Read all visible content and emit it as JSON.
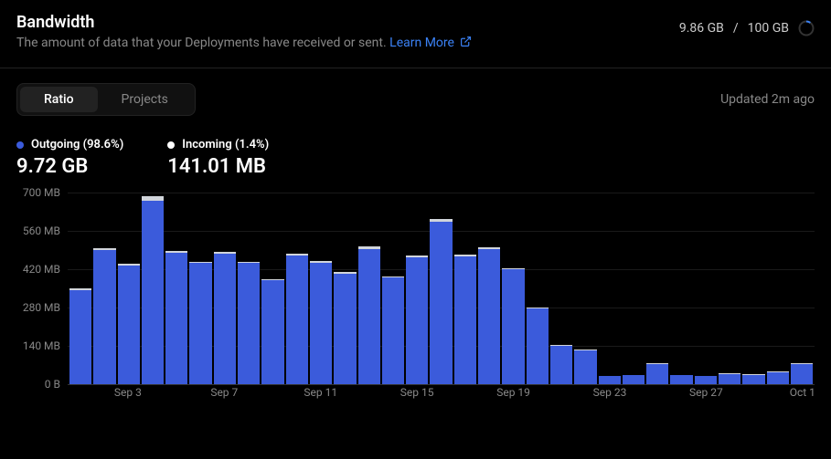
{
  "header": {
    "title": "Bandwidth",
    "subtitle": "The amount of data that your Deployments have received or sent.",
    "learn_more_label": "Learn More"
  },
  "usage": {
    "used": "9.86 GB",
    "limit": "100 GB",
    "percent": 9.86,
    "ring_track": "#333333",
    "ring_fill": "#3b82f6"
  },
  "tabs": {
    "items": [
      {
        "label": "Ratio",
        "active": true
      },
      {
        "label": "Projects",
        "active": false
      }
    ],
    "updated": "Updated 2m ago"
  },
  "legend": {
    "items": [
      {
        "label": "Outgoing (98.6%)",
        "value": "9.72 GB",
        "color": "#3b5bdb"
      },
      {
        "label": "Incoming (1.4%)",
        "value": "141.01 MB",
        "color": "#ffffff"
      }
    ]
  },
  "chart": {
    "type": "stacked-bar",
    "y_max": 700,
    "y_ticks": [
      {
        "v": 700,
        "label": "700 MB"
      },
      {
        "v": 560,
        "label": "560 MB"
      },
      {
        "v": 420,
        "label": "420 MB"
      },
      {
        "v": 280,
        "label": "280 MB"
      },
      {
        "v": 140,
        "label": "140 MB"
      },
      {
        "v": 0,
        "label": "0 B"
      }
    ],
    "grid_color": "#1a1a1a",
    "baseline_color": "#333333",
    "background_color": "#000000",
    "series": [
      {
        "name": "Outgoing",
        "color": "#3b5bdb"
      },
      {
        "name": "Incoming",
        "color": "#d1d5db"
      }
    ],
    "bars": [
      {
        "outgoing": 345,
        "incoming": 5,
        "xlabel": null
      },
      {
        "outgoing": 490,
        "incoming": 8,
        "xlabel": null
      },
      {
        "outgoing": 435,
        "incoming": 6,
        "xlabel": "Sep 3"
      },
      {
        "outgoing": 670,
        "incoming": 18,
        "xlabel": null
      },
      {
        "outgoing": 480,
        "incoming": 7,
        "xlabel": null
      },
      {
        "outgoing": 442,
        "incoming": 5,
        "xlabel": null
      },
      {
        "outgoing": 478,
        "incoming": 6,
        "xlabel": "Sep 7"
      },
      {
        "outgoing": 443,
        "incoming": 4,
        "xlabel": null
      },
      {
        "outgoing": 380,
        "incoming": 5,
        "xlabel": null
      },
      {
        "outgoing": 470,
        "incoming": 7,
        "xlabel": null
      },
      {
        "outgoing": 445,
        "incoming": 5,
        "xlabel": "Sep 11"
      },
      {
        "outgoing": 405,
        "incoming": 5,
        "xlabel": null
      },
      {
        "outgoing": 495,
        "incoming": 7,
        "xlabel": null
      },
      {
        "outgoing": 390,
        "incoming": 4,
        "xlabel": null
      },
      {
        "outgoing": 465,
        "incoming": 6,
        "xlabel": "Sep 15"
      },
      {
        "outgoing": 593,
        "incoming": 12,
        "xlabel": null
      },
      {
        "outgoing": 467,
        "incoming": 6,
        "xlabel": null
      },
      {
        "outgoing": 495,
        "incoming": 5,
        "xlabel": null
      },
      {
        "outgoing": 420,
        "incoming": 4,
        "xlabel": "Sep 19"
      },
      {
        "outgoing": 277,
        "incoming": 3,
        "xlabel": null
      },
      {
        "outgoing": 140,
        "incoming": 2,
        "xlabel": null
      },
      {
        "outgoing": 125,
        "incoming": 2,
        "xlabel": null
      },
      {
        "outgoing": 30,
        "incoming": 1,
        "xlabel": "Sep 23"
      },
      {
        "outgoing": 33,
        "incoming": 1,
        "xlabel": null
      },
      {
        "outgoing": 75,
        "incoming": 1,
        "xlabel": null
      },
      {
        "outgoing": 32,
        "incoming": 1,
        "xlabel": null
      },
      {
        "outgoing": 30,
        "incoming": 1,
        "xlabel": "Sep 27"
      },
      {
        "outgoing": 38,
        "incoming": 1,
        "xlabel": null
      },
      {
        "outgoing": 35,
        "incoming": 1,
        "xlabel": null
      },
      {
        "outgoing": 45,
        "incoming": 1,
        "xlabel": null
      },
      {
        "outgoing": 75,
        "incoming": 2,
        "xlabel": "Oct 1"
      }
    ]
  }
}
